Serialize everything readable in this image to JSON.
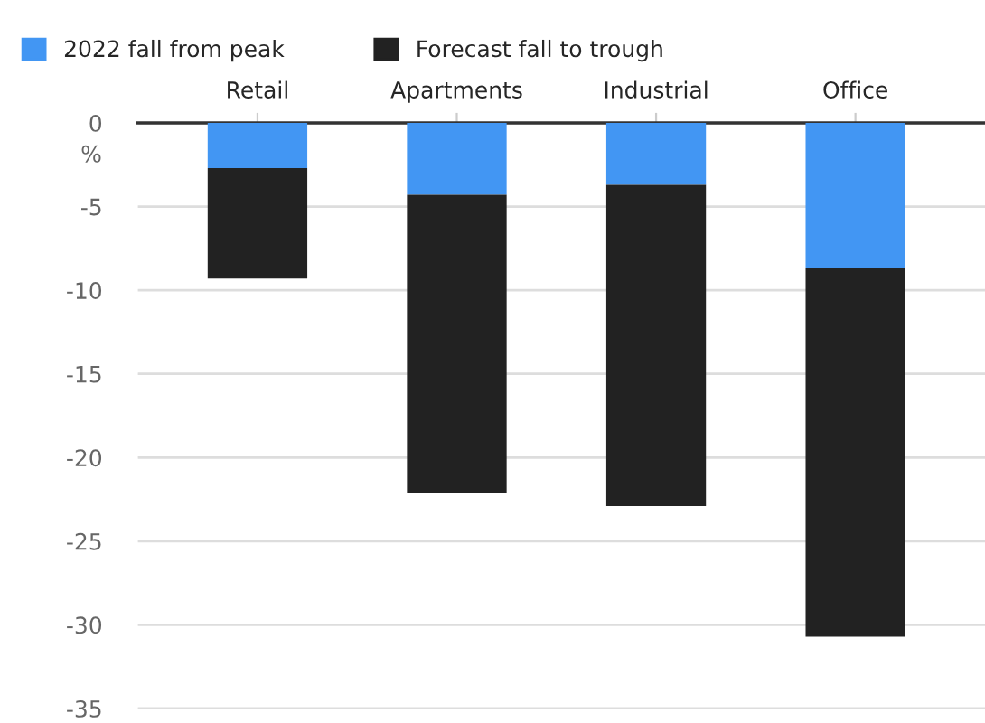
{
  "chart_data": {
    "type": "bar",
    "stacked": true,
    "ylabel": "%",
    "categories": [
      "Retail",
      "Apartments",
      "Industrial",
      "Office"
    ],
    "series": [
      {
        "name": "2022 fall from peak",
        "color": "#4296f3",
        "values": [
          -2.7,
          -4.3,
          -3.7,
          -8.7
        ]
      },
      {
        "name": "Forecast fall to trough",
        "color": "#222222",
        "values": [
          -6.6,
          -17.8,
          -19.2,
          -22.0
        ]
      }
    ],
    "ylim": [
      -35,
      0
    ],
    "yticks": [
      0,
      -5,
      -10,
      -15,
      -20,
      -25,
      -30,
      -35
    ],
    "grid": "y",
    "legend": "top left"
  }
}
